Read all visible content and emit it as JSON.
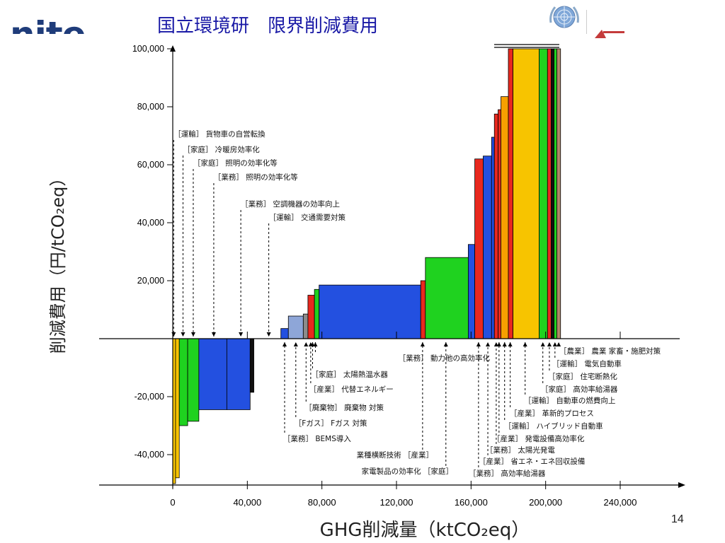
{
  "slide": {
    "logo_text": "nite",
    "title": "国立環境研　限界削減費用",
    "page_number": "14"
  },
  "colors": {
    "yellow": "#f7c400",
    "green": "#1fd21f",
    "blue": "#2350e0",
    "red": "#e8281e",
    "orange": "#f7a000",
    "lightblue": "#8ea6d8",
    "gray": "#8c8c8c",
    "black": "#111111",
    "tan": "#b08868",
    "label_text": "#111111"
  },
  "chart_data": {
    "type": "bar",
    "xlabel": "GHG削減量（ktCO₂eq）",
    "ylabel": "削減費用（円/tCO₂eq）",
    "xlim": [
      0,
      260000
    ],
    "ylim": [
      -50000,
      100000
    ],
    "x_ticks": [
      {
        "value": 0,
        "label": "0"
      },
      {
        "value": 40000,
        "label": "40,000"
      },
      {
        "value": 80000,
        "label": "80,000"
      },
      {
        "value": 120000,
        "label": "120,000"
      },
      {
        "value": 160000,
        "label": "160,000"
      },
      {
        "value": 200000,
        "label": "200,000"
      },
      {
        "value": 240000,
        "label": "240,000"
      }
    ],
    "y_ticks": [
      {
        "value": 100000,
        "label": "100,000"
      },
      {
        "value": 80000,
        "label": "80,000"
      },
      {
        "value": 60000,
        "label": "60,000"
      },
      {
        "value": 40000,
        "label": "40,000"
      },
      {
        "value": 20000,
        "label": "20,000"
      },
      {
        "value": 0,
        "label": ""
      },
      {
        "value": -20000,
        "label": "-20,000"
      },
      {
        "value": -40000,
        "label": "-40,000"
      }
    ],
    "bars": [
      {
        "x0": 0,
        "x1": 1500,
        "y": -50000,
        "color": "yellow"
      },
      {
        "x0": 1500,
        "x1": 3500,
        "y": -48000,
        "color": "yellow"
      },
      {
        "x0": 3500,
        "x1": 8000,
        "y": -30000,
        "color": "green"
      },
      {
        "x0": 8000,
        "x1": 14000,
        "y": -28500,
        "color": "green"
      },
      {
        "x0": 14000,
        "x1": 29000,
        "y": -24500,
        "color": "blue"
      },
      {
        "x0": 29000,
        "x1": 41500,
        "y": -24500,
        "color": "blue"
      },
      {
        "x0": 41500,
        "x1": 43500,
        "y": -18500,
        "color": "black"
      },
      {
        "x0": 58000,
        "x1": 62000,
        "y": 3500,
        "color": "blue"
      },
      {
        "x0": 62000,
        "x1": 70000,
        "y": 7800,
        "color": "lightblue"
      },
      {
        "x0": 70000,
        "x1": 72500,
        "y": 8500,
        "color": "gray"
      },
      {
        "x0": 72500,
        "x1": 76000,
        "y": 15000,
        "color": "red"
      },
      {
        "x0": 76000,
        "x1": 78500,
        "y": 17000,
        "color": "green"
      },
      {
        "x0": 78500,
        "x1": 133000,
        "y": 18500,
        "color": "blue"
      },
      {
        "x0": 133000,
        "x1": 135500,
        "y": 20000,
        "color": "red"
      },
      {
        "x0": 135500,
        "x1": 158500,
        "y": 28000,
        "color": "green"
      },
      {
        "x0": 158500,
        "x1": 162000,
        "y": 32500,
        "color": "blue"
      },
      {
        "x0": 162000,
        "x1": 166500,
        "y": 62000,
        "color": "red"
      },
      {
        "x0": 166500,
        "x1": 171000,
        "y": 63000,
        "color": "blue"
      },
      {
        "x0": 171000,
        "x1": 172500,
        "y": 69500,
        "color": "blue"
      },
      {
        "x0": 172500,
        "x1": 174500,
        "y": 77500,
        "color": "red"
      },
      {
        "x0": 174500,
        "x1": 176000,
        "y": 79000,
        "color": "red"
      },
      {
        "x0": 176000,
        "x1": 180000,
        "y": 83500,
        "color": "orange"
      },
      {
        "x0": 180000,
        "x1": 182500,
        "y": 100000,
        "color": "red"
      },
      {
        "x0": 182500,
        "x1": 196500,
        "y": 100000,
        "color": "yellow"
      },
      {
        "x0": 196500,
        "x1": 201000,
        "y": 100000,
        "color": "green"
      },
      {
        "x0": 201000,
        "x1": 203000,
        "y": 100000,
        "color": "red"
      },
      {
        "x0": 203000,
        "x1": 204500,
        "y": 100000,
        "color": "black"
      },
      {
        "x0": 204500,
        "x1": 206000,
        "y": 100000,
        "color": "green"
      },
      {
        "x0": 206000,
        "x1": 208000,
        "y": 100000,
        "color": "tan"
      }
    ],
    "annotations_upper": [
      {
        "text": "［運輸］ 貨物車の自営転換",
        "x": 500
      },
      {
        "text": "［家庭］ 冷暖房効率化",
        "x": 5500
      },
      {
        "text": "［家庭］ 照明の効率化等",
        "x": 11000
      },
      {
        "text": "［業務］ 照明の効率化等",
        "x": 22000
      },
      {
        "text": "［業務］ 空調機器の効率向上",
        "x": 36500
      },
      {
        "text": "［運輸］ 交通需要対策",
        "x": 51500
      }
    ],
    "annotations_lower_left": [
      {
        "text": "［業務］ 動力他の高効率化",
        "x": 76500
      },
      {
        "text": "［家庭］ 太陽熱温水器",
        "x": 75000
      },
      {
        "text": "［産業］ 代替エネルギー",
        "x": 74000
      },
      {
        "text": "［廃棄物］ 廃棄物 対策",
        "x": 71500
      },
      {
        "text": "［Fガス］ Fガス 対策",
        "x": 66000
      },
      {
        "text": "［業務］ BEMS導入",
        "x": 60000
      },
      {
        "text": "業種横断技術 ［産業］",
        "x": 134000
      },
      {
        "text": "家電製品の効率化 ［家庭］",
        "x": 146500
      }
    ],
    "annotations_lower_right": [
      {
        "text": "［農業］ 農業 家畜・施肥対策",
        "x": 207000
      },
      {
        "text": "［運輸］ 電気自動車",
        "x": 205000
      },
      {
        "text": "［家庭］ 住宅断熱化",
        "x": 202000
      },
      {
        "text": "［家庭］ 高効率給湯器",
        "x": 198500
      },
      {
        "text": "［運輸］ 自動車の燃費向上",
        "x": 189000
      },
      {
        "text": "［産業］ 革新的プロセス",
        "x": 181000
      },
      {
        "text": "［運輸］ ハイブリッド自動車",
        "x": 178000
      },
      {
        "text": "［産業］ 発電設備高効率化",
        "x": 175000
      },
      {
        "text": "［業務］ 太陽光発電",
        "x": 173500
      },
      {
        "text": "［産業］ 省エネ・エネ回収設備",
        "x": 169000
      },
      {
        "text": "［業務］ 高効率給湯器",
        "x": 164000
      }
    ]
  }
}
